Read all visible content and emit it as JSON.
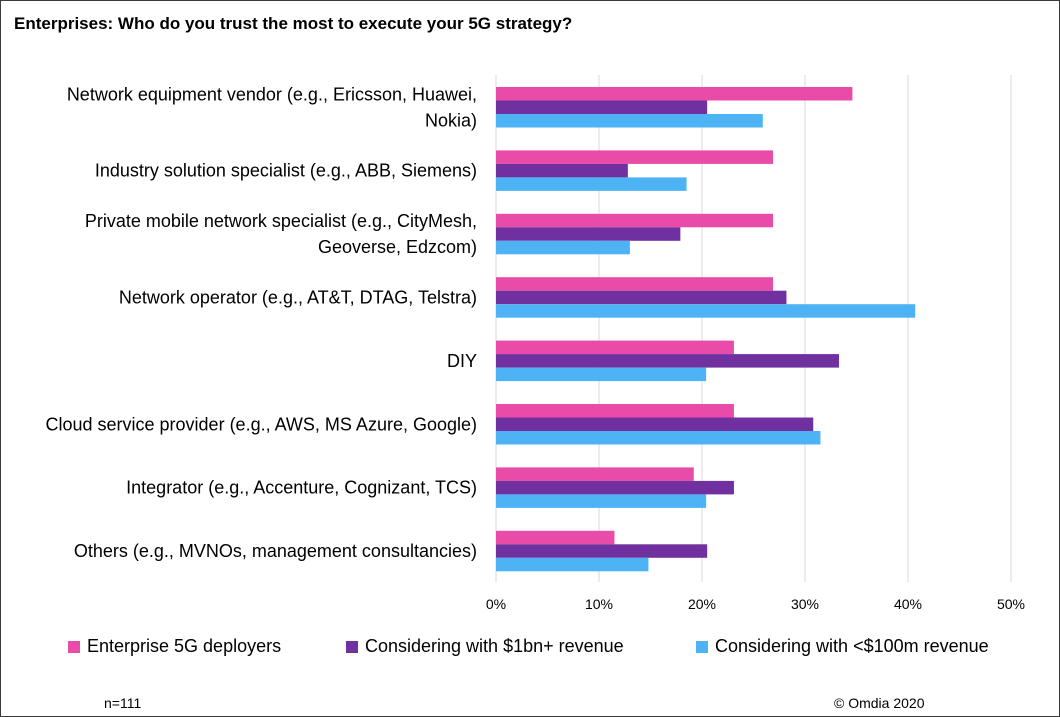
{
  "title": "Enterprises: Who do you trust the most to execute your 5G strategy?",
  "footnote_left": "n=111",
  "footnote_right": "© Omdia 2020",
  "chart_data": {
    "type": "bar",
    "orientation": "horizontal",
    "categories": [
      [
        "Network equipment vendor (e.g., Ericsson, Huawei,",
        "Nokia)"
      ],
      [
        "Industry solution specialist (e.g., ABB, Siemens)"
      ],
      [
        "Private mobile network specialist (e.g., CityMesh,",
        "Geoverse, Edzcom)"
      ],
      [
        "Network operator (e.g., AT&T, DTAG, Telstra)"
      ],
      [
        "DIY"
      ],
      [
        "Cloud service provider (e.g., AWS, MS Azure, Google)"
      ],
      [
        "Integrator (e.g., Accenture, Cognizant, TCS)"
      ],
      [
        "Others (e.g., MVNOs, management consultancies)"
      ]
    ],
    "series": [
      {
        "name": "Enterprise 5G deployers",
        "color": "#E84BA8",
        "values": [
          34.6,
          26.9,
          26.9,
          26.9,
          23.1,
          23.1,
          19.2,
          11.5
        ]
      },
      {
        "name": "Considering with $1bn+ revenue",
        "color": "#7030A0",
        "values": [
          20.5,
          12.8,
          17.9,
          28.2,
          33.3,
          30.8,
          23.1,
          20.5
        ]
      },
      {
        "name": "Considering with <$100m revenue",
        "color": "#4EB3F5",
        "values": [
          25.9,
          18.5,
          13.0,
          40.7,
          20.4,
          31.5,
          20.4,
          14.8
        ]
      }
    ],
    "x_ticks": [
      "0%",
      "10%",
      "20%",
      "30%",
      "40%",
      "50%"
    ],
    "xlim": [
      0,
      50
    ],
    "grid": true,
    "legend_position": "bottom"
  }
}
